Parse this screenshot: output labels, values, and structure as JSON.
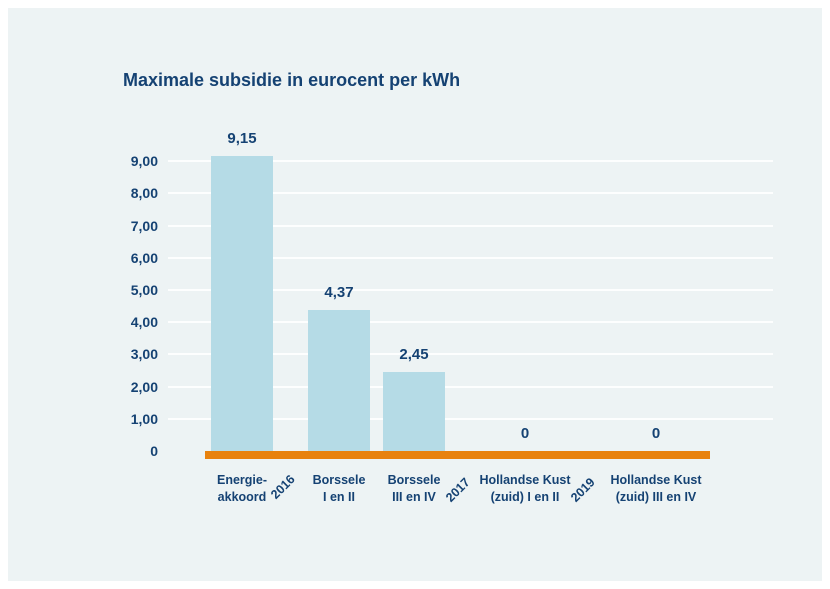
{
  "title": "Maximale subsidie in eurocent per kWh",
  "chart_data": {
    "type": "bar",
    "title": "Maximale subsidie in eurocent per kWh",
    "categories": [
      [
        "Energie-",
        "akkoord"
      ],
      [
        "Borssele",
        "I en II"
      ],
      [
        "Borssele",
        "III en IV"
      ],
      [
        "Hollandse Kust",
        "(zuid) I en II"
      ],
      [
        "Hollandse Kust",
        "(zuid) III en IV"
      ]
    ],
    "values": [
      9.15,
      4.37,
      2.45,
      0,
      0
    ],
    "value_labels": [
      "9,15",
      "4,37",
      "2,45",
      "0",
      "0"
    ],
    "year_labels": [
      "2016",
      "2017",
      "2019"
    ],
    "y_ticks": [
      "9,00",
      "8,00",
      "7,00",
      "6,00",
      "5,00",
      "4,00",
      "3,00",
      "2,00",
      "1,00",
      "0"
    ],
    "ylabel": "",
    "xlabel": "",
    "ylim": [
      0,
      9.15
    ],
    "grid": true,
    "legend": "none",
    "colors": {
      "bar": "#b5dbe6",
      "axis_line": "#e8820e",
      "text": "#154273",
      "panel_background": "#edf3f4",
      "page_background": "#ffffff",
      "gridline": "#f8fbfb"
    }
  }
}
